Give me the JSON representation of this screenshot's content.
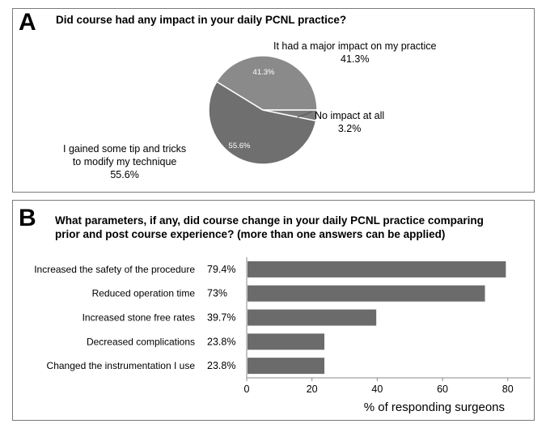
{
  "panels": {
    "a": {
      "letter": "A",
      "title": "Did course had any impact in your daily PCNL practice?"
    },
    "b": {
      "letter": "B",
      "title_line1": "What parameters, if any, did course change in your daily PCNL practice comparing",
      "title_line2": "prior and post course experience? (more than one answers can be applied)"
    }
  },
  "chart_data": [
    {
      "type": "pie",
      "title": "Did course had any impact in your daily PCNL practice?",
      "slices": [
        {
          "label": "It had a major impact on my practice",
          "value": 41.3,
          "display": "41.3%"
        },
        {
          "label": "No impact at all",
          "value": 3.2,
          "display": "3.2%"
        },
        {
          "label": "I gained some tip and tricks to modify my technique",
          "label_line1": "I gained some tip and tricks",
          "label_line2": "to modify my technique",
          "value": 55.6,
          "display": "55.6%"
        }
      ],
      "colors": {
        "major": "#8a8a8a",
        "none": "#7b7b7b",
        "tips": "#6f6f6f"
      }
    },
    {
      "type": "bar",
      "orientation": "horizontal",
      "title": "What parameters, if any, did course change in your daily PCNL practice comparing prior and post course experience? (more than one answers can be applied)",
      "categories": [
        "Increased the safety of the procedure",
        "Reduced operation time",
        "Increased stone free rates",
        "Decreased complications",
        "Changed the instrumentation I use"
      ],
      "values": [
        79.4,
        73,
        39.7,
        23.8,
        23.8
      ],
      "value_labels": [
        "79.4%",
        "73%",
        "39.7%",
        "23.8%",
        "23.8%"
      ],
      "xlabel": "% of responding surgeons",
      "xlim": [
        0,
        87
      ],
      "xticks": [
        0,
        20,
        40,
        60,
        80
      ],
      "bar_color": "#6b6b6b"
    }
  ]
}
